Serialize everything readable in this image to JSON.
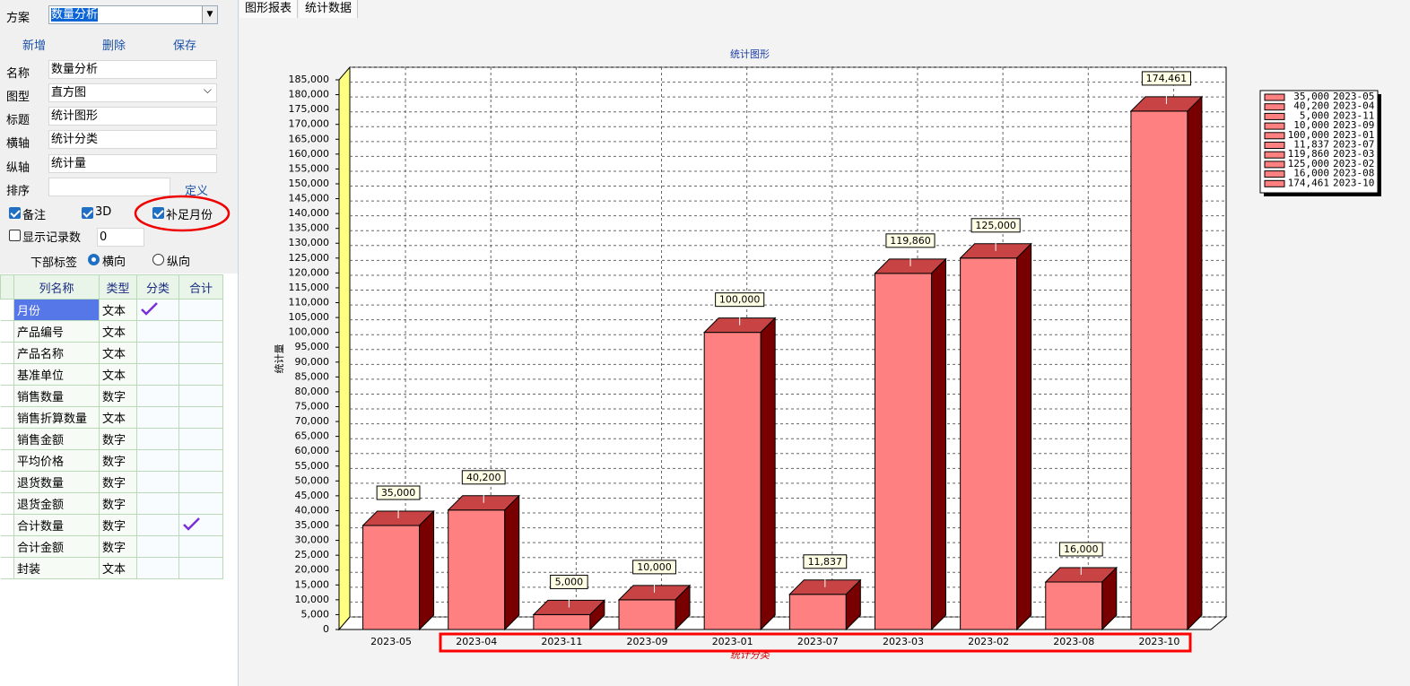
{
  "scheme": {
    "label": "方案",
    "value": "数量分析"
  },
  "buttons": [
    "新增",
    "删除",
    "保存"
  ],
  "fields": [
    {
      "label": "名称",
      "value": "数量分析"
    },
    {
      "label": "图型",
      "value": "直方图"
    },
    {
      "label": "标题",
      "value": "统计图形"
    },
    {
      "label": "横轴",
      "value": "统计分类"
    },
    {
      "label": "纵轴",
      "value": "统计量"
    },
    {
      "label": "排序"
    }
  ],
  "define_link": "定义",
  "options": [
    {
      "label": "备注",
      "checked": true
    },
    {
      "label": "3D",
      "checked": true
    },
    {
      "label": "补足月份",
      "checked": true
    },
    {
      "label": "显示记录数",
      "checked": false
    }
  ],
  "record_count": 0,
  "bottom_label": {
    "label": "下部标签",
    "options": [
      "横向",
      "纵向"
    ],
    "selected": 0
  },
  "table": {
    "columns": [
      "列名称",
      "类型",
      "分类",
      "合计"
    ],
    "rows": [
      {
        "name": "月份",
        "type": "文本",
        "group": true
      },
      {
        "name": "产品编号",
        "type": "文本"
      },
      {
        "name": "产品名称",
        "type": "文本"
      },
      {
        "name": "基准单位",
        "type": "文本"
      },
      {
        "name": "销售数量",
        "type": "数字"
      },
      {
        "name": "销售折算数量",
        "type": "文本"
      },
      {
        "name": "销售金额",
        "type": "数字"
      },
      {
        "name": "平均价格",
        "type": "数字"
      },
      {
        "name": "退货数量",
        "type": "数字"
      },
      {
        "name": "退货金额",
        "type": "数字"
      },
      {
        "name": "合计数量",
        "type": "数字",
        "sum": true
      },
      {
        "name": "合计金额",
        "type": "数字"
      },
      {
        "name": "封装",
        "type": "文本"
      }
    ]
  },
  "tabs": [
    "图形报表",
    "统计数据"
  ],
  "chart_data": {
    "type": "bar",
    "title": "统计图形",
    "x_label": "统计分类",
    "y_label": "统计量",
    "categories": [
      "2023-05",
      "2023-04",
      "2023-11",
      "2023-09",
      "2023-01",
      "2023-07",
      "2023-03",
      "2023-02",
      "2023-08",
      "2023-10"
    ],
    "values": [
      35000,
      40200,
      5000,
      10000,
      100000,
      11837,
      119860,
      125000,
      16000,
      174461
    ],
    "value_labels": [
      "35,000",
      "40,200",
      "5,000",
      "10,000",
      "100,000",
      "11,837",
      "119,860",
      "125,000",
      "16,000",
      "174,461"
    ],
    "color": "#ff8080",
    "top_color": "#c84444",
    "side_color": "#780000",
    "wall_color": "#ffff80",
    "ylim": [
      0,
      185000
    ],
    "yticks": [
      0,
      {
        "value": 5000,
        "label": "5,000"
      },
      {
        "value": 10000,
        "label": "10,000"
      },
      {
        "value": 15000,
        "label": "15,000"
      },
      {
        "value": 20000,
        "label": "20,000"
      },
      {
        "value": 25000,
        "label": "25,000"
      },
      {
        "value": 30000,
        "label": "30,000"
      },
      {
        "value": 35000,
        "label": "35,000"
      },
      {
        "value": 40000,
        "label": "40,000"
      },
      {
        "value": 45000,
        "label": "45,000"
      },
      {
        "value": 50000,
        "label": "50,000"
      },
      {
        "value": 55000,
        "label": "55,000"
      },
      {
        "value": 60000,
        "label": "60,000"
      },
      {
        "value": 65000,
        "label": "65,000"
      },
      {
        "value": 70000,
        "label": "70,000"
      },
      {
        "value": 75000,
        "label": "75,000"
      },
      {
        "value": 80000,
        "label": "80,000"
      },
      {
        "value": 85000,
        "label": "85,000"
      },
      {
        "value": 90000,
        "label": "90,000"
      },
      {
        "value": 95000,
        "label": "95,000"
      },
      {
        "value": 100000,
        "label": "100,000"
      },
      {
        "value": 105000,
        "label": "105,000"
      },
      {
        "value": 110000,
        "label": "110,000"
      },
      {
        "value": 115000,
        "label": "115,000"
      },
      {
        "value": 120000,
        "label": "120,000"
      },
      {
        "value": 125000,
        "label": "125,000"
      },
      {
        "value": 130000,
        "label": "130,000"
      },
      {
        "value": 135000,
        "label": "135,000"
      },
      {
        "value": 140000,
        "label": "140,000"
      },
      {
        "value": 145000,
        "label": "145,000"
      },
      {
        "value": 150000,
        "label": "150,000"
      },
      {
        "value": 155000,
        "label": "155,000"
      },
      {
        "value": 160000,
        "label": "160,000"
      },
      {
        "value": 165000,
        "label": "165,000"
      },
      {
        "value": 170000,
        "label": "170,000"
      },
      {
        "value": 175000,
        "label": "175,000"
      },
      {
        "value": 180000,
        "label": "180,000"
      },
      {
        "value": 185000,
        "label": "185,000"
      }
    ],
    "grid": true,
    "three_d": true,
    "legend": "right"
  }
}
